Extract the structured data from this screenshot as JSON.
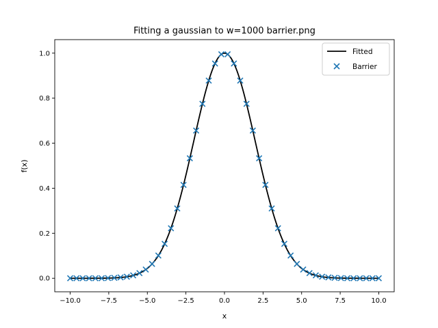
{
  "chart_data": {
    "type": "scatter",
    "title": "Fitting a gaussian to w=1000 barrier.png",
    "xlabel": "x",
    "ylabel": "f(x)",
    "xlim": [
      -11.0,
      11.0
    ],
    "ylim": [
      -0.06,
      1.06
    ],
    "x_ticks": [
      -10.0,
      -7.5,
      -5.0,
      -2.5,
      0.0,
      2.5,
      5.0,
      7.5,
      10.0
    ],
    "x_tick_labels": [
      "−10.0",
      "−7.5",
      "−5.0",
      "−2.5",
      "0.0",
      "2.5",
      "5.0",
      "7.5",
      "10.0"
    ],
    "y_ticks": [
      0.0,
      0.2,
      0.4,
      0.6,
      0.8,
      1.0
    ],
    "y_tick_labels": [
      "0.0",
      "0.2",
      "0.4",
      "0.6",
      "0.8",
      "1.0"
    ],
    "grid": false,
    "legend_position": "top-right",
    "series": [
      {
        "name": "Fitted",
        "kind": "line",
        "color": "#000000",
        "model": "gaussian",
        "amplitude": 1.0,
        "mean": 0.0,
        "sigma": 2.0,
        "x": [
          -10.0,
          10.0
        ]
      },
      {
        "name": "Barrier",
        "kind": "scatter",
        "marker": "x",
        "color": "#1f77b4",
        "x": [
          -10.0,
          -9.592,
          -9.184,
          -8.776,
          -8.367,
          -7.959,
          -7.551,
          -7.143,
          -6.735,
          -6.327,
          -5.918,
          -5.51,
          -5.102,
          -4.694,
          -4.286,
          -3.878,
          -3.469,
          -3.061,
          -2.653,
          -2.245,
          -1.837,
          -1.429,
          -1.02,
          -0.612,
          -0.204,
          0.204,
          0.612,
          1.02,
          1.429,
          1.837,
          2.245,
          2.653,
          3.061,
          3.469,
          3.878,
          4.286,
          4.694,
          5.102,
          5.51,
          5.918,
          6.327,
          6.735,
          7.143,
          7.551,
          7.959,
          8.367,
          8.776,
          9.184,
          9.592,
          10.0
        ],
        "y": [
          0.0,
          0.0,
          0.0,
          0.0,
          0.0,
          0.0,
          0.001,
          0.002,
          0.004,
          0.007,
          0.013,
          0.023,
          0.039,
          0.064,
          0.101,
          0.153,
          0.222,
          0.31,
          0.415,
          0.533,
          0.656,
          0.775,
          0.878,
          0.954,
          0.995,
          0.995,
          0.954,
          0.878,
          0.775,
          0.656,
          0.533,
          0.415,
          0.31,
          0.222,
          0.153,
          0.101,
          0.064,
          0.039,
          0.023,
          0.013,
          0.007,
          0.004,
          0.002,
          0.001,
          0.0,
          0.0,
          0.0,
          0.0,
          0.0,
          0.0
        ]
      }
    ]
  }
}
